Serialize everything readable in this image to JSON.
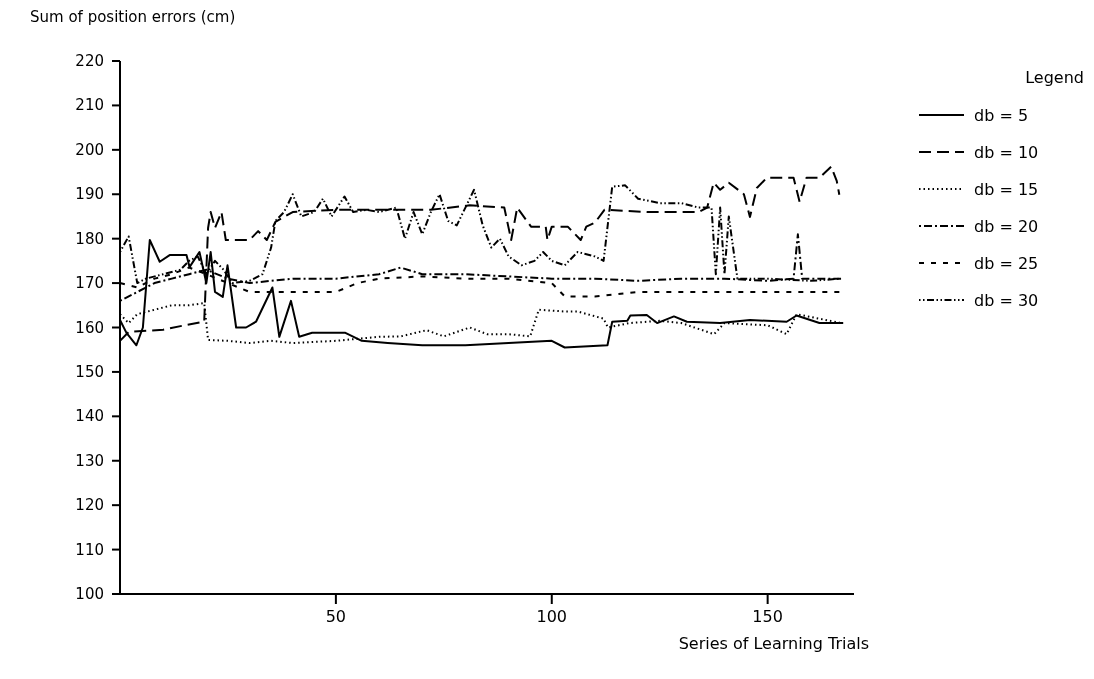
{
  "chart_data": {
    "type": "line",
    "ylabel": "Sum of position errors (cm)",
    "xlabel": "Series of Learning Trials",
    "legend_title": "Legend",
    "legend": "right",
    "grid": false,
    "marker": "none",
    "xlim": [
      0,
      170
    ],
    "xticks": [
      50,
      100,
      150
    ],
    "ylim": [
      100,
      220
    ],
    "yticks": [
      100,
      110,
      120,
      130,
      140,
      150,
      160,
      170,
      180,
      190,
      200,
      210,
      220
    ],
    "series": [
      {
        "name": "db = 5",
        "color": "#000000",
        "line_style": "solid",
        "x": [
          0,
          1.5,
          3.8,
          5.3,
          6.9,
          9.2,
          11.5,
          15.4,
          16.1,
          18.4,
          20,
          21,
          22,
          23.8,
          24.9,
          26.9,
          29.2,
          31.5,
          35.3,
          36.9,
          39.6,
          41.5,
          44.5,
          52.2,
          56,
          62,
          70,
          80,
          90,
          100,
          103,
          112.9,
          114,
          117.5,
          118.2,
          122,
          124.4,
          128.3,
          131.3,
          139,
          145.9,
          154.4,
          156.7,
          162,
          167.5
        ],
        "values": [
          161.7,
          158.8,
          156,
          160,
          179.7,
          174.8,
          176.3,
          176.3,
          173.6,
          177,
          170,
          177,
          168,
          166.9,
          174,
          160,
          160,
          161.3,
          169,
          157.9,
          166,
          157.9,
          158.8,
          158.8,
          157,
          156.5,
          156,
          156,
          156.5,
          157,
          155.5,
          156,
          161.3,
          161.5,
          162.7,
          162.8,
          161,
          162.5,
          161.3,
          161,
          161.7,
          161.3,
          162.7,
          161,
          161
        ]
      },
      {
        "name": "db = 10",
        "color": "#000000",
        "line_style": "dashed",
        "x": [
          0,
          2,
          10,
          15,
          19.5,
          20.4,
          21,
          22,
          23.5,
          24.5,
          30,
          32,
          34,
          36,
          40,
          50,
          62,
          72,
          81,
          89,
          90.6,
          92,
          95.2,
          98.6,
          99,
          100,
          103.7,
          106.7,
          108,
          110,
          112.2,
          122,
          134,
          136,
          137.5,
          139,
          141,
          144.5,
          145.9,
          147.5,
          149.8,
          156,
          157.4,
          159,
          162,
          164.7,
          166,
          166.6
        ],
        "values": [
          157,
          159,
          159.5,
          160.5,
          161.3,
          182.4,
          186,
          182.4,
          186,
          179.7,
          179.7,
          181.7,
          179.7,
          183.8,
          186,
          186.5,
          186.5,
          186.5,
          187.5,
          187,
          179.7,
          187,
          182.7,
          182.7,
          179.7,
          182.7,
          182.7,
          179.7,
          182.7,
          183.6,
          186.5,
          186,
          186,
          187,
          192.6,
          191,
          192.6,
          190,
          184.9,
          191.4,
          193.7,
          193.7,
          188.3,
          193.7,
          193.7,
          196.2,
          193,
          189.9
        ]
      },
      {
        "name": "db = 15",
        "color": "#000000",
        "line_style": "dotted",
        "x": [
          0,
          2,
          4,
          8,
          12,
          16,
          19.5,
          20.4,
          25,
          30,
          35,
          40,
          50,
          60,
          65,
          71,
          75,
          81,
          85,
          90,
          95,
          97,
          103,
          106,
          112,
          113,
          118,
          125,
          130,
          137.6,
          140,
          150,
          154.4,
          156.7,
          167
        ],
        "values": [
          163,
          161,
          163,
          164,
          165,
          165,
          165.5,
          157.2,
          157,
          156.5,
          157,
          156.5,
          157,
          157.9,
          158,
          159.4,
          158,
          160,
          158.5,
          158.5,
          158,
          164,
          163.6,
          163.6,
          162,
          160,
          161,
          161.5,
          161,
          158.5,
          161,
          160.5,
          158.5,
          163,
          161
        ]
      },
      {
        "name": "db = 20",
        "color": "#000000",
        "line_style": "dashdot",
        "x": [
          0,
          4,
          8,
          12,
          16,
          20,
          25,
          30,
          35,
          40,
          50,
          60,
          65,
          70,
          80,
          90,
          100,
          110,
          120,
          130,
          140,
          150,
          156,
          157,
          158,
          167
        ],
        "values": [
          166,
          168,
          170,
          171,
          172,
          173,
          171,
          170,
          170.5,
          171,
          171,
          172,
          173.5,
          172,
          172,
          171.5,
          171,
          171,
          170.5,
          171,
          171,
          170.5,
          171,
          181,
          171,
          171
        ]
      },
      {
        "name": "db = 25",
        "color": "#000000",
        "line_style": "loosely dashed",
        "x": [
          0,
          4,
          8,
          12,
          16,
          20,
          25,
          30,
          40,
          50,
          55,
          60,
          70,
          80,
          90,
          100,
          103,
          110,
          120,
          130,
          140,
          150,
          160,
          167
        ],
        "values": [
          170,
          169,
          171,
          172,
          173.5,
          172,
          170,
          168,
          168,
          168,
          170,
          171,
          171.5,
          171,
          171,
          170,
          167,
          167,
          168,
          168,
          168,
          168,
          168,
          168
        ]
      },
      {
        "name": "db = 30",
        "color": "#000000",
        "line_style": "dashdotdot",
        "x": [
          0,
          2,
          4,
          6,
          10,
          14,
          16,
          18,
          20,
          22,
          24,
          26,
          30,
          33,
          35,
          36,
          38,
          40,
          42,
          45,
          47,
          49,
          52,
          54,
          57,
          60,
          64,
          66,
          68,
          70,
          72,
          74,
          76,
          78,
          80,
          82,
          84,
          86,
          88,
          90,
          93,
          96,
          98,
          100,
          103,
          106,
          110,
          112,
          114,
          117,
          120,
          125,
          130,
          134,
          137,
          138,
          139,
          140,
          141,
          143,
          150,
          160,
          167
        ],
        "values": [
          177,
          180.5,
          170,
          171,
          172,
          173,
          175,
          176,
          172,
          175,
          173,
          170,
          170.5,
          172,
          178,
          184,
          186,
          190,
          185,
          186,
          189,
          185,
          189.5,
          186,
          186.5,
          186,
          187,
          180,
          186,
          181,
          186,
          190,
          184,
          183,
          187,
          191,
          183,
          178,
          180,
          176,
          174,
          175,
          177,
          175,
          174,
          177,
          176,
          175,
          191.7,
          192,
          189,
          188,
          188,
          187,
          187,
          172,
          187,
          172,
          185,
          171,
          171,
          170.5,
          171
        ]
      }
    ]
  }
}
